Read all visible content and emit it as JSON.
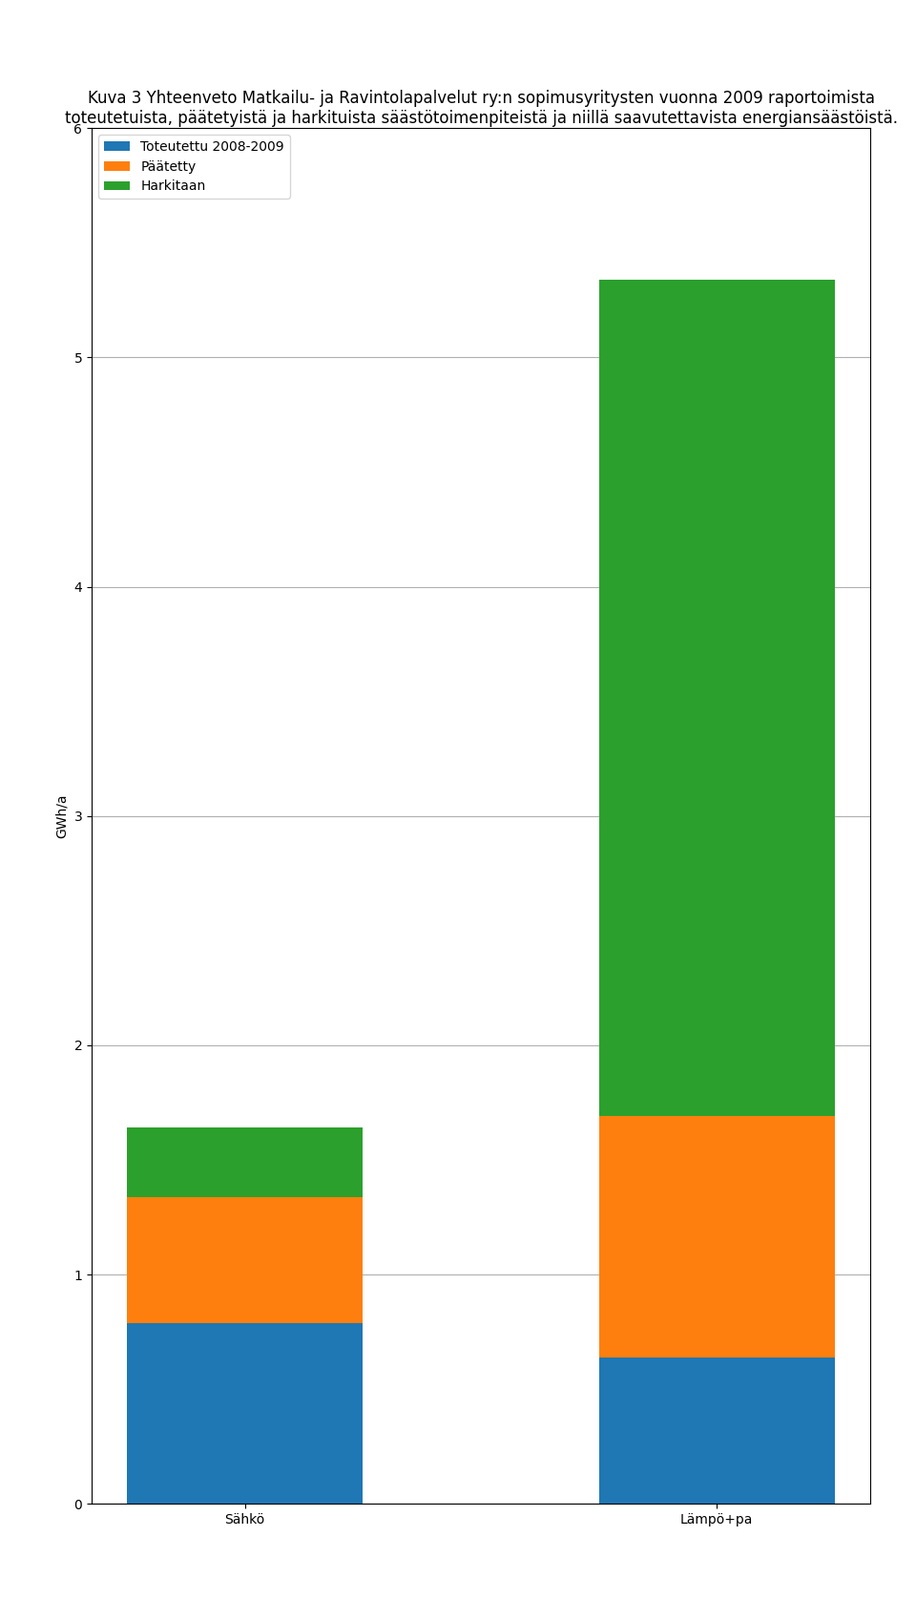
{
  "chart_data": {
    "type": "bar",
    "stacked": true,
    "title": "Kuva 3 Yhteenveto Matkailu- ja Ravintolapalvelut ry:n sopimusyritysten vuonna 2009 raportoimista toteutetuista, päätetyistä ja harkituista säästötoimenpiteistä ja niillä saavutettavista energiansäästöistä.",
    "categories": [
      "Sähkö",
      "Lämpö+pa"
    ],
    "series": [
      {
        "name": "Toteutettu 2008-2009",
        "values": [
          0.79,
          0.64
        ]
      },
      {
        "name": "Päätetty",
        "values": [
          0.55,
          1.05
        ]
      },
      {
        "name": "Harkitaan",
        "values": [
          0.3,
          3.65
        ]
      }
    ],
    "ylabel": "GWh/a",
    "ylim": [
      0,
      6
    ],
    "yticks": [
      0,
      1,
      2,
      3,
      4,
      5,
      6
    ],
    "grid": true,
    "legend": "upper left"
  }
}
